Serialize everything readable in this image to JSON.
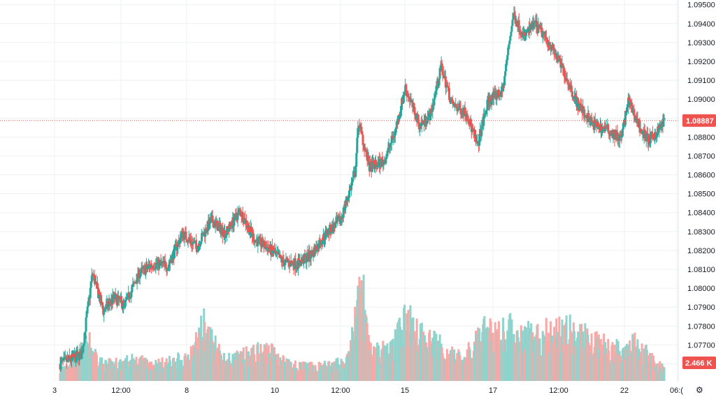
{
  "chart_data": {
    "type": "candlestick",
    "ylim": [
      1.0755,
      1.0951
    ],
    "y_ticks": [
      "1.09500",
      "1.09400",
      "1.09300",
      "1.09200",
      "1.09100",
      "1.09000",
      "1.08900",
      "1.08800",
      "1.08700",
      "1.08600",
      "1.08500",
      "1.08400",
      "1.08300",
      "1.08200",
      "1.08100",
      "1.08000",
      "1.07900",
      "1.07800",
      "1.07700",
      "1.07600"
    ],
    "x_ticks": [
      "3",
      "12:00",
      "8",
      "10",
      "12:00",
      "15",
      "17",
      "12:00",
      "22",
      "06:("
    ],
    "last_price": {
      "value": 1.08887,
      "label": "1.08887"
    },
    "volume_label": "2.466 K",
    "colors": {
      "up": "#26a69a",
      "down": "#ef5350",
      "up_volume": "#8fd3cc",
      "down_volume": "#f7a9a7",
      "grid": "#eef0f3",
      "price_line": "#ef5350"
    },
    "price_path": [
      [
        0,
        1.076
      ],
      [
        6,
        1.0765
      ],
      [
        9,
        1.0808
      ],
      [
        12,
        1.0788
      ],
      [
        15,
        1.0795
      ],
      [
        18,
        1.0791
      ],
      [
        22,
        1.0808
      ],
      [
        26,
        1.0813
      ],
      [
        30,
        1.0812
      ],
      [
        34,
        1.0829
      ],
      [
        38,
        1.0822
      ],
      [
        42,
        1.0836
      ],
      [
        46,
        1.0829
      ],
      [
        50,
        1.0841
      ],
      [
        54,
        1.0826
      ],
      [
        58,
        1.0821
      ],
      [
        62,
        1.0814
      ],
      [
        66,
        1.0813
      ],
      [
        70,
        1.0818
      ],
      [
        74,
        1.0829
      ],
      [
        78,
        1.0836
      ],
      [
        82,
        1.0861
      ],
      [
        83,
        1.0888
      ],
      [
        86,
        1.0864
      ],
      [
        90,
        1.0867
      ],
      [
        93,
        1.0882
      ],
      [
        96,
        1.0906
      ],
      [
        100,
        1.0886
      ],
      [
        103,
        1.0892
      ],
      [
        106,
        1.0917
      ],
      [
        109,
        1.0897
      ],
      [
        113,
        1.0893
      ],
      [
        116,
        1.0875
      ],
      [
        119,
        1.0899
      ],
      [
        123,
        1.0904
      ],
      [
        126,
        1.0945
      ],
      [
        129,
        1.0933
      ],
      [
        132,
        1.094
      ],
      [
        136,
        1.093
      ],
      [
        140,
        1.0915
      ],
      [
        144,
        1.0897
      ],
      [
        148,
        1.0887
      ],
      [
        152,
        1.0884
      ],
      [
        156,
        1.0879
      ],
      [
        158,
        1.0899
      ],
      [
        162,
        1.0882
      ],
      [
        164,
        1.0878
      ],
      [
        168,
        1.0888
      ]
    ],
    "volume_path": [
      [
        0,
        180
      ],
      [
        8,
        600
      ],
      [
        12,
        260
      ],
      [
        20,
        330
      ],
      [
        28,
        280
      ],
      [
        36,
        380
      ],
      [
        40,
        900
      ],
      [
        46,
        330
      ],
      [
        52,
        420
      ],
      [
        58,
        520
      ],
      [
        64,
        250
      ],
      [
        70,
        230
      ],
      [
        76,
        260
      ],
      [
        80,
        330
      ],
      [
        84,
        1600
      ],
      [
        86,
        480
      ],
      [
        92,
        500
      ],
      [
        96,
        1000
      ],
      [
        104,
        620
      ],
      [
        112,
        350
      ],
      [
        118,
        780
      ],
      [
        126,
        820
      ],
      [
        134,
        760
      ],
      [
        140,
        840
      ],
      [
        148,
        660
      ],
      [
        154,
        500
      ],
      [
        160,
        640
      ],
      [
        166,
        240
      ],
      [
        168,
        260
      ]
    ],
    "volume_max": 1700
  }
}
